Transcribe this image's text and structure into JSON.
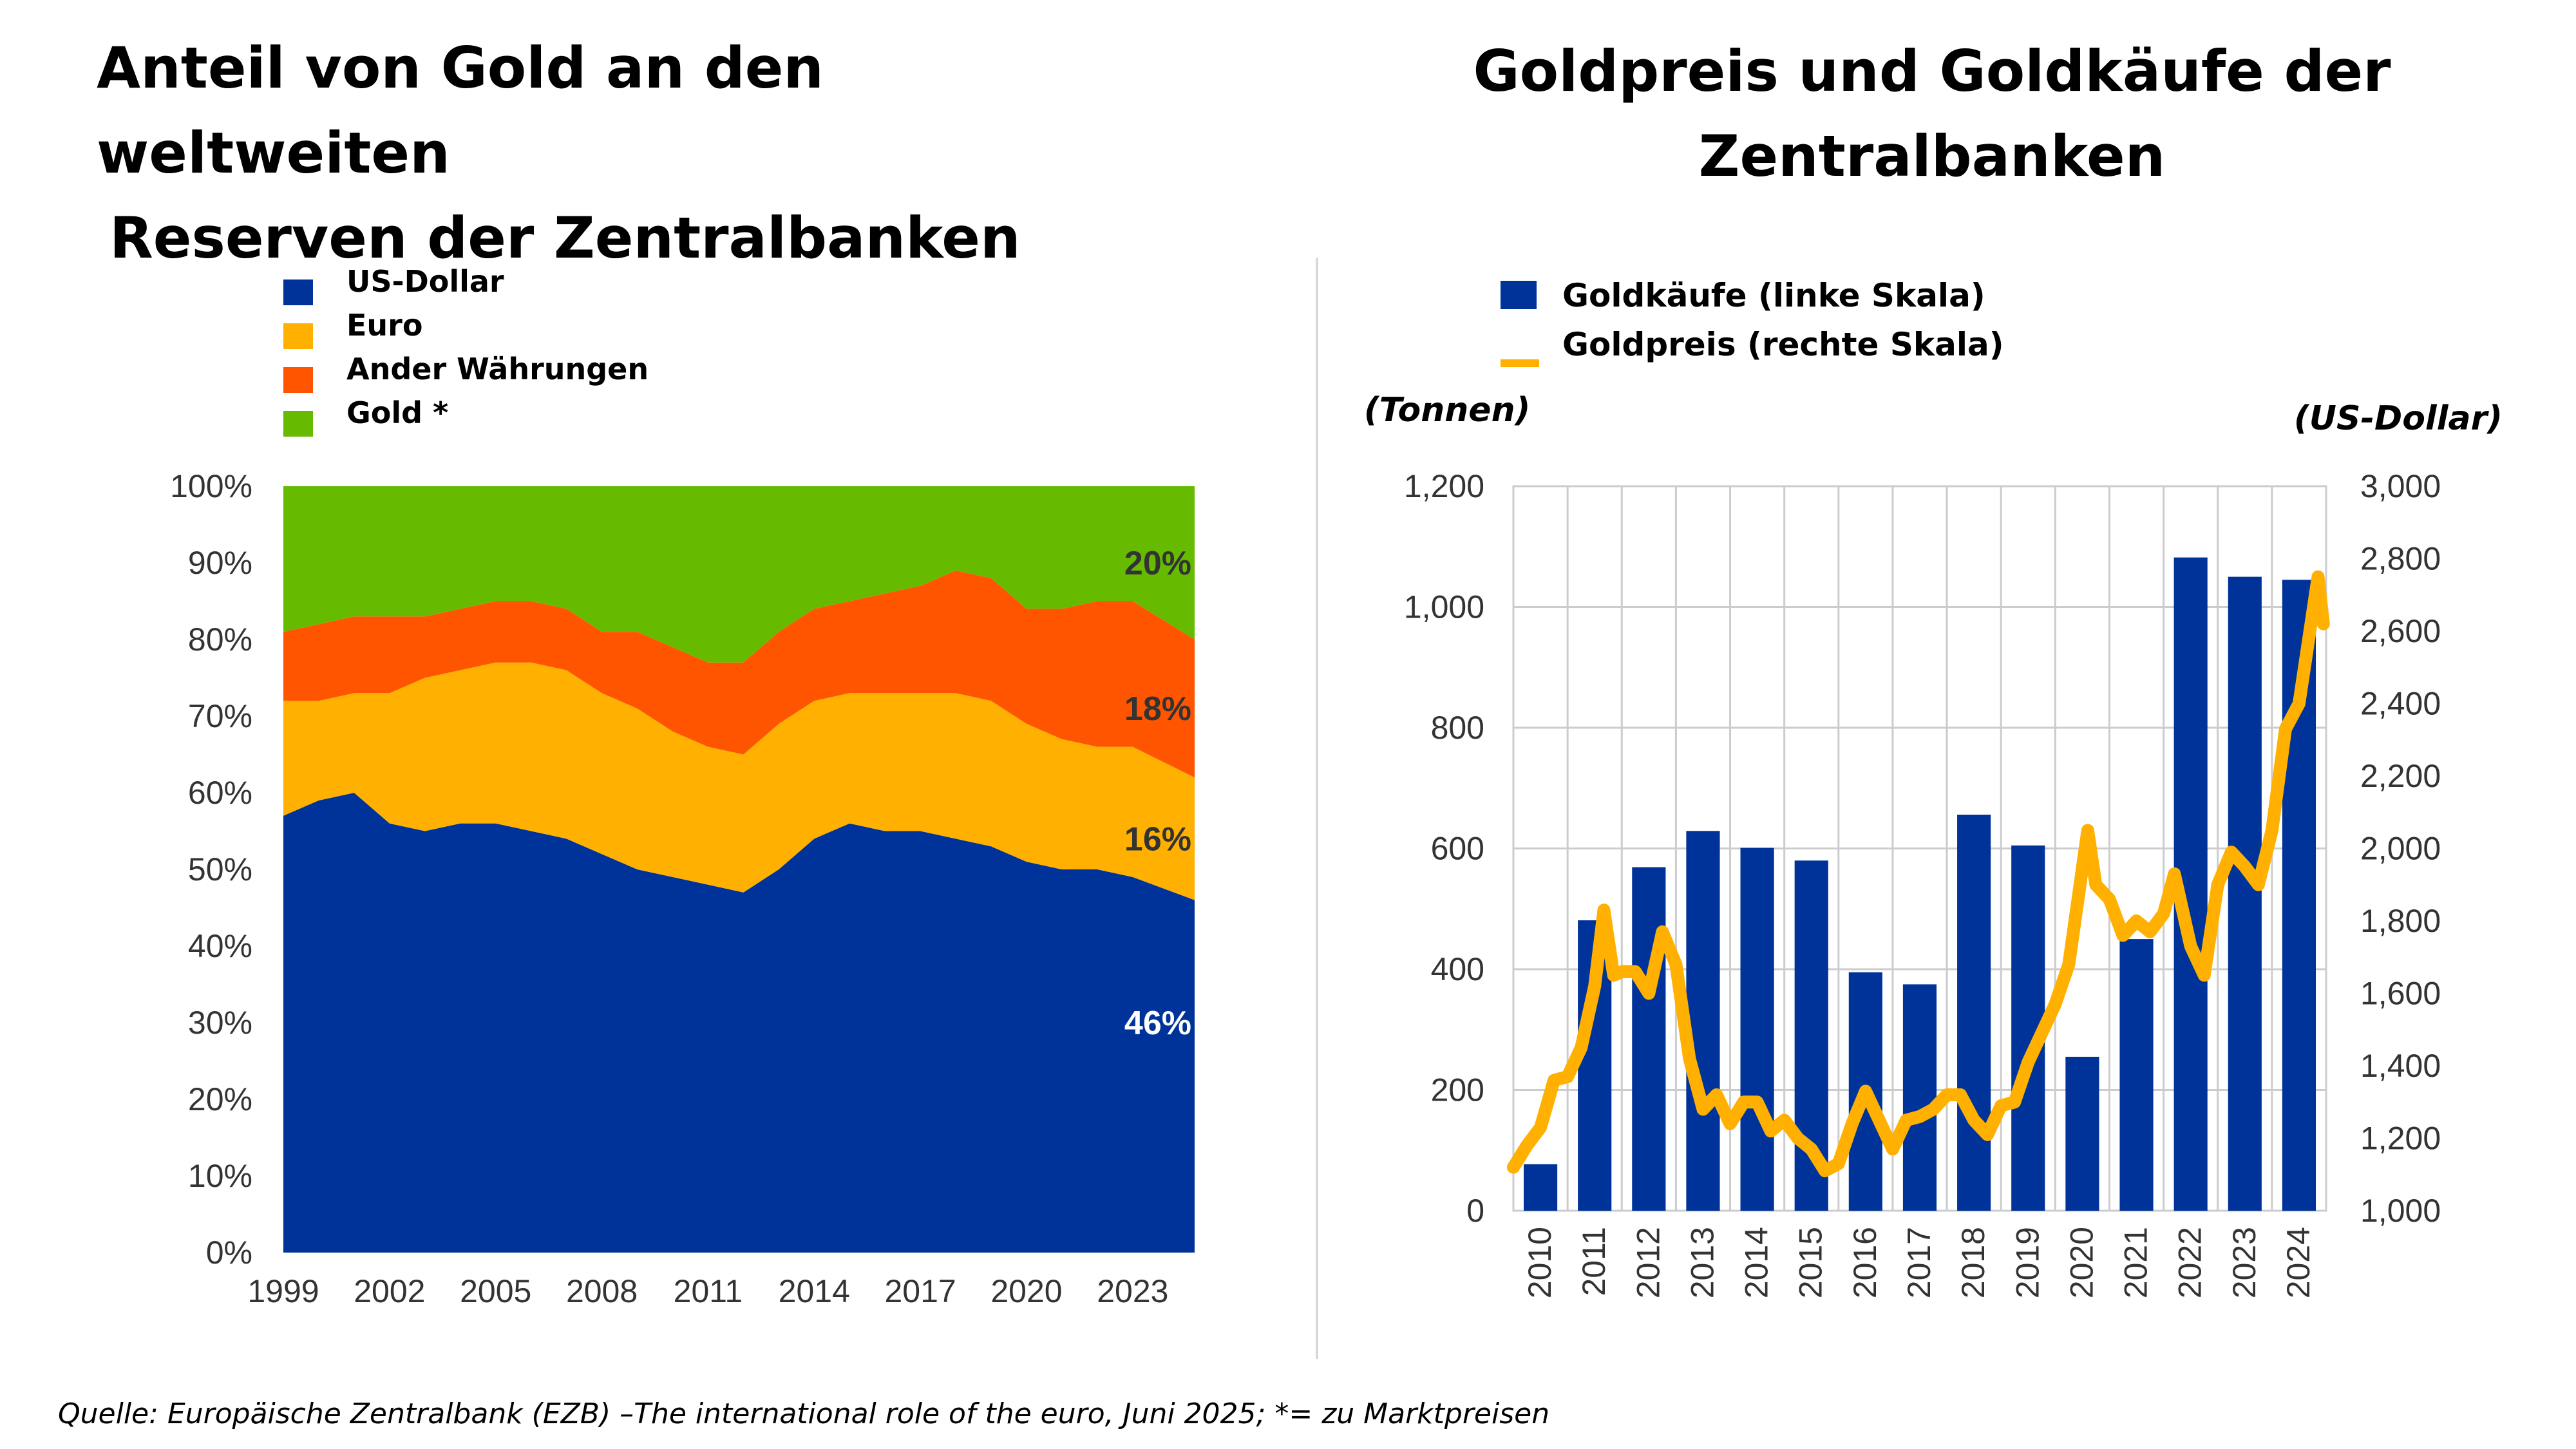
{
  "left_panel": {
    "title_line1": "Anteil von Gold an den weltweiten",
    "title_line2": "Reserven der Zentralbanken"
  },
  "right_panel": {
    "title_line1": "Goldpreis und Goldkäufe der",
    "title_line2": "Zentralbanken",
    "left_unit": "(Tonnen)",
    "right_unit": "(US-Dollar)"
  },
  "source": "Quelle: Europäische Zentralbank (EZB) –The international role of the euro, Juni 2025; *= zu Marktpreisen",
  "chart_data": [
    {
      "type": "area",
      "stacked": true,
      "title": "Anteil von Gold an den weltweiten Reserven der Zentralbanken",
      "x": [
        1999,
        2000,
        2001,
        2002,
        2003,
        2004,
        2005,
        2006,
        2007,
        2008,
        2009,
        2010,
        2011,
        2012,
        2013,
        2014,
        2015,
        2016,
        2017,
        2018,
        2019,
        2020,
        2021,
        2022,
        2023,
        2024.75
      ],
      "x_ticks": [
        "1999",
        "2002",
        "2005",
        "2008",
        "2011",
        "2014",
        "2017",
        "2020",
        "2023"
      ],
      "x_tick_values": [
        1999,
        2002,
        2005,
        2008,
        2011,
        2014,
        2017,
        2020,
        2023
      ],
      "ylim": [
        0,
        100
      ],
      "y_ticks": [
        "0%",
        "10%",
        "20%",
        "30%",
        "40%",
        "50%",
        "60%",
        "70%",
        "80%",
        "90%",
        "100%"
      ],
      "legend_position": "top-left",
      "series": [
        {
          "name": "US-Dollar",
          "color": "#003399",
          "values": [
            57,
            59,
            60,
            56,
            55,
            56,
            56,
            55,
            54,
            52,
            50,
            49,
            48,
            47,
            50,
            54,
            56,
            55,
            55,
            54,
            53,
            51,
            50,
            50,
            49,
            46
          ]
        },
        {
          "name": "Euro",
          "color": "#FFB000",
          "values": [
            15,
            13,
            13,
            17,
            20,
            20,
            21,
            22,
            22,
            21,
            21,
            19,
            18,
            18,
            19,
            18,
            17,
            18,
            18,
            19,
            19,
            18,
            17,
            16,
            17,
            16
          ]
        },
        {
          "name": "Ander Währungen",
          "color": "#FF5500",
          "values": [
            9,
            10,
            10,
            10,
            8,
            8,
            8,
            8,
            8,
            8,
            10,
            11,
            11,
            12,
            12,
            12,
            12,
            13,
            14,
            16,
            16,
            15,
            17,
            19,
            19,
            18
          ]
        },
        {
          "name": "Gold *",
          "color": "#66BB00",
          "values": [
            19,
            18,
            17,
            17,
            17,
            16,
            15,
            15,
            16,
            19,
            19,
            21,
            23,
            23,
            19,
            16,
            15,
            14,
            13,
            11,
            12,
            16,
            16,
            15,
            15,
            20
          ]
        }
      ],
      "data_labels": [
        {
          "series": "Gold *",
          "text": "20%"
        },
        {
          "series": "Ander Währungen",
          "text": "18%"
        },
        {
          "series": "Euro",
          "text": "16%"
        },
        {
          "series": "US-Dollar",
          "text": "46%"
        }
      ]
    },
    {
      "type": "bar",
      "title": "Goldpreis und Goldkäufe der Zentralbanken",
      "categories": [
        "2010",
        "2011",
        "2012",
        "2013",
        "2014",
        "2015",
        "2016",
        "2017",
        "2018",
        "2019",
        "2020",
        "2021",
        "2022",
        "2023",
        "2024"
      ],
      "ylim": [
        0,
        1200
      ],
      "y_ticks": [
        "0",
        "200",
        "400",
        "600",
        "800",
        "1,000",
        "1,200"
      ],
      "y2lim": [
        1000,
        3000
      ],
      "y2_ticks": [
        "1,000",
        "1,200",
        "1,400",
        "1,600",
        "1,800",
        "2,000",
        "2,200",
        "2,400",
        "2,600",
        "2,800",
        "3,000"
      ],
      "legend_position": "top-left",
      "grid": true,
      "series": [
        {
          "name": "Goldkäufe (linke Skala)",
          "axis": "left",
          "color": "#003399",
          "values": [
            77,
            481,
            569,
            629,
            601,
            580,
            395,
            375,
            656,
            605,
            255,
            450,
            1082,
            1050,
            1045
          ]
        },
        {
          "name": "Goldpreis (rechte Skala)",
          "axis": "right",
          "color": "#FFB000",
          "type": "line",
          "x": [
            2010.0,
            2010.25,
            2010.5,
            2010.75,
            2011.0,
            2011.25,
            2011.5,
            2011.67,
            2011.85,
            2012.0,
            2012.25,
            2012.5,
            2012.75,
            2013.0,
            2013.25,
            2013.5,
            2013.75,
            2014.0,
            2014.25,
            2014.5,
            2014.75,
            2015.0,
            2015.25,
            2015.5,
            2015.75,
            2016.0,
            2016.25,
            2016.5,
            2016.75,
            2017.0,
            2017.25,
            2017.5,
            2017.75,
            2018.0,
            2018.25,
            2018.5,
            2018.75,
            2019.0,
            2019.25,
            2019.5,
            2019.75,
            2020.0,
            2020.25,
            2020.6,
            2020.75,
            2021.0,
            2021.25,
            2021.5,
            2021.75,
            2022.0,
            2022.2,
            2022.5,
            2022.75,
            2023.0,
            2023.25,
            2023.5,
            2023.75,
            2024.0,
            2024.25,
            2024.5,
            2024.75,
            2024.85,
            2024.95
          ],
          "values": [
            1120,
            1180,
            1230,
            1360,
            1370,
            1450,
            1620,
            1830,
            1650,
            1660,
            1660,
            1600,
            1770,
            1680,
            1420,
            1280,
            1320,
            1240,
            1300,
            1300,
            1220,
            1250,
            1200,
            1170,
            1110,
            1130,
            1240,
            1330,
            1250,
            1170,
            1250,
            1260,
            1280,
            1320,
            1320,
            1250,
            1210,
            1290,
            1300,
            1410,
            1490,
            1570,
            1680,
            2050,
            1900,
            1860,
            1760,
            1800,
            1770,
            1820,
            1930,
            1730,
            1650,
            1900,
            1990,
            1950,
            1900,
            2050,
            2330,
            2400,
            2650,
            2750,
            2620
          ]
        }
      ]
    }
  ]
}
